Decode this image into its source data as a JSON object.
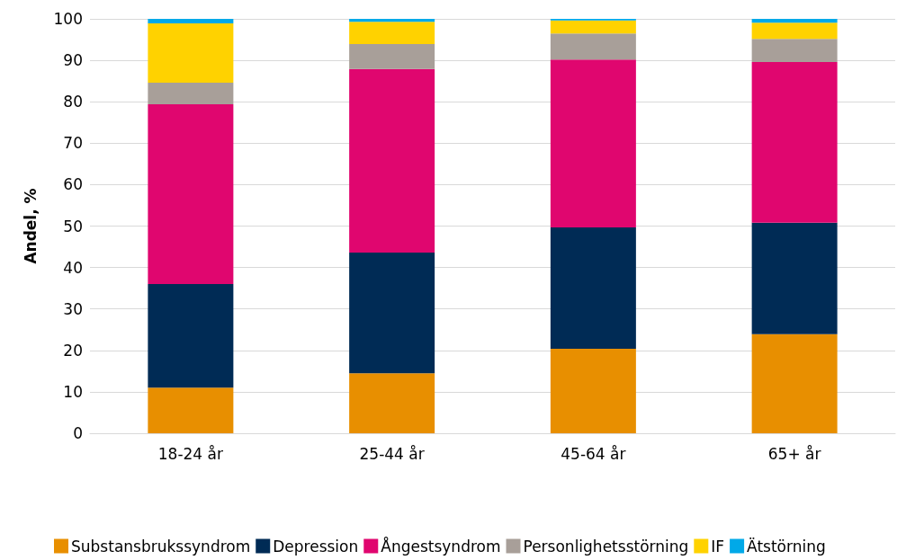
{
  "chart_data": {
    "type": "bar",
    "stacked": true,
    "ylabel": "Andel, %",
    "categories": [
      "18-24 år",
      "25-44 år",
      "45-64 år",
      "65+ år"
    ],
    "series": [
      {
        "name": "Substansbrukssyndrom",
        "color": "#e88f00",
        "values": [
          11,
          14.5,
          20.4,
          23.9
        ]
      },
      {
        "name": "Depression",
        "color": "#002b55",
        "values": [
          25,
          29.1,
          29.3,
          26.9
        ]
      },
      {
        "name": "Ångestsyndrom",
        "color": "#e0066f",
        "values": [
          43.4,
          44.3,
          40.5,
          38.8
        ]
      },
      {
        "name": "Personlighetsstörning",
        "color": "#a89f99",
        "values": [
          5.2,
          6,
          6.3,
          5.6
        ]
      },
      {
        "name": "IF",
        "color": "#ffd200",
        "values": [
          14.3,
          5.4,
          3.1,
          3.9
        ]
      },
      {
        "name": "Ätstörning",
        "color": "#00a9e8",
        "values": [
          1.1,
          0.7,
          0.4,
          0.9
        ]
      }
    ],
    "ylim": [
      0,
      100
    ],
    "yticks": [
      0,
      10,
      20,
      30,
      40,
      50,
      60,
      70,
      80,
      90,
      100
    ],
    "grid": "y",
    "legend": "bottom"
  }
}
